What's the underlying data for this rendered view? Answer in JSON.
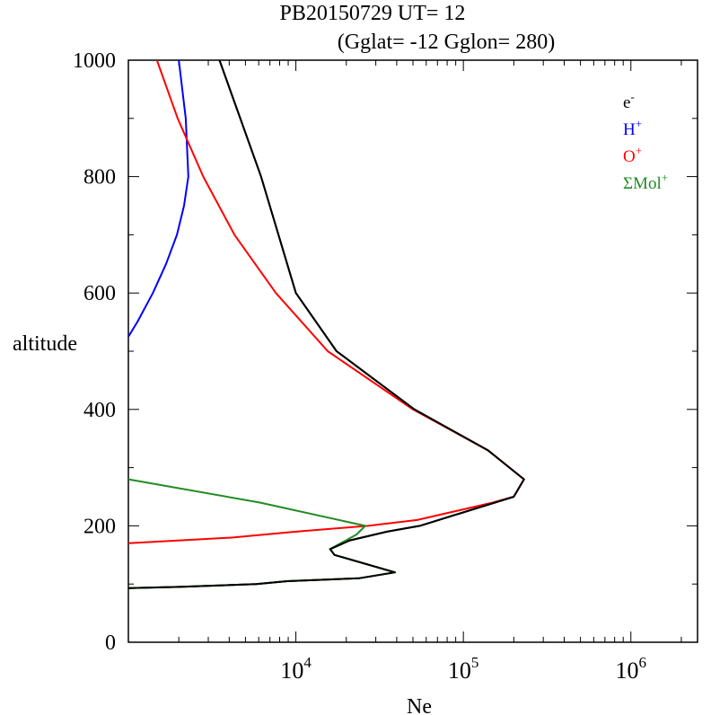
{
  "chart_data": {
    "type": "line",
    "title": "PB20150729   UT=  12",
    "subtitle": "(Gglat= -12   Gglon=  280)",
    "xlabel": "Ne",
    "ylabel": "altitude",
    "xscale": "log",
    "xlim": [
      1000,
      2500000
    ],
    "ylim": [
      0,
      1000
    ],
    "xticks": [
      {
        "value": 10000,
        "base": "10",
        "exp": "4"
      },
      {
        "value": 100000,
        "base": "10",
        "exp": "5"
      },
      {
        "value": 1000000,
        "base": "10",
        "exp": "6"
      }
    ],
    "yticks": [
      "0",
      "200",
      "400",
      "600",
      "800",
      "1000"
    ],
    "grid": false,
    "legend_position": "top-right",
    "series": [
      {
        "name": "e",
        "sup": "-",
        "color": "#000000",
        "points": [
          [
            3500,
            1000
          ],
          [
            6200,
            800
          ],
          [
            10000,
            600
          ],
          [
            17500,
            500
          ],
          [
            51000,
            400
          ],
          [
            140000,
            330
          ],
          [
            230000,
            280
          ],
          [
            200000,
            250
          ],
          [
            119000,
            230
          ],
          [
            55000,
            200
          ],
          [
            35000,
            190
          ],
          [
            21000,
            175
          ],
          [
            16000,
            160
          ],
          [
            17000,
            150
          ],
          [
            39000,
            120
          ],
          [
            24000,
            110
          ],
          [
            8900,
            105
          ],
          [
            5800,
            100
          ],
          [
            2000,
            95
          ],
          [
            1000,
            93
          ]
        ]
      },
      {
        "name": "H",
        "sup": "+",
        "color": "#0000ff",
        "points": [
          [
            2000,
            1000
          ],
          [
            2200,
            900
          ],
          [
            2280,
            800
          ],
          [
            2150,
            750
          ],
          [
            1950,
            700
          ],
          [
            1680,
            650
          ],
          [
            1400,
            600
          ],
          [
            1130,
            550
          ],
          [
            1000,
            525
          ]
        ]
      },
      {
        "name": "O",
        "sup": "+",
        "color": "#ff0000",
        "points": [
          [
            1480,
            1000
          ],
          [
            1970,
            900
          ],
          [
            2800,
            800
          ],
          [
            4300,
            700
          ],
          [
            7600,
            600
          ],
          [
            15500,
            500
          ],
          [
            50000,
            400
          ],
          [
            140000,
            330
          ],
          [
            230000,
            280
          ],
          [
            200000,
            250
          ],
          [
            150000,
            240
          ],
          [
            53000,
            210
          ],
          [
            27000,
            200
          ],
          [
            10000,
            190
          ],
          [
            4200,
            180
          ],
          [
            1000,
            170
          ]
        ]
      },
      {
        "name": "ΣMol",
        "sup": "+",
        "color": "#228b22",
        "points": [
          [
            1000,
            280
          ],
          [
            6100,
            240
          ],
          [
            26000,
            200
          ],
          [
            23000,
            185
          ],
          [
            16000,
            160
          ],
          [
            17000,
            150
          ],
          [
            39000,
            120
          ],
          [
            24000,
            110
          ],
          [
            8900,
            105
          ],
          [
            5800,
            100
          ],
          [
            2000,
            95
          ],
          [
            1000,
            93
          ]
        ]
      }
    ]
  }
}
